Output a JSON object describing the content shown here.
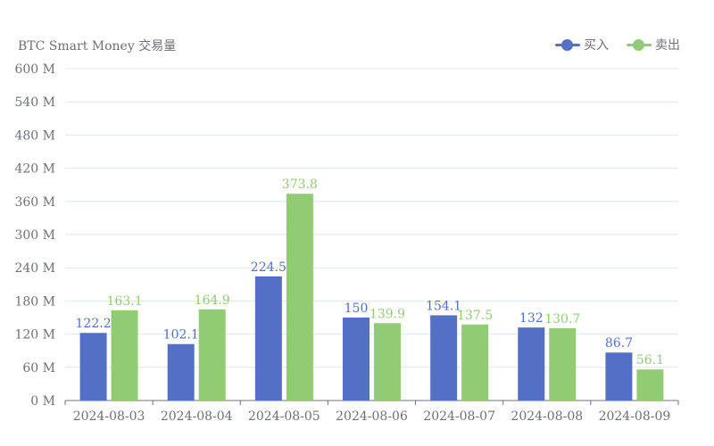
{
  "chart_data": {
    "type": "bar",
    "title": "BTC Smart Money 交易量",
    "categories": [
      "2024-08-03",
      "2024-08-04",
      "2024-08-05",
      "2024-08-06",
      "2024-08-07",
      "2024-08-08",
      "2024-08-09"
    ],
    "series": [
      {
        "name": "买入",
        "color": "#5470c6",
        "values": [
          122.2,
          102.1,
          224.5,
          150,
          154.1,
          132,
          86.7
        ],
        "value_labels": [
          "122.2",
          "102.1",
          "224.5",
          "150",
          "154.1",
          "132",
          "86.7"
        ]
      },
      {
        "name": "卖出",
        "color": "#91cc75",
        "values": [
          163.1,
          164.9,
          373.8,
          139.9,
          137.5,
          130.7,
          56.1
        ],
        "value_labels": [
          "163.1",
          "164.9",
          "373.8",
          "139.9",
          "137.5",
          "130.7",
          "56.1"
        ]
      }
    ],
    "ylim": [
      0,
      600
    ],
    "yticks": [
      0,
      60,
      120,
      180,
      240,
      300,
      360,
      420,
      480,
      540,
      600
    ],
    "ytick_labels": [
      "0 M",
      "60 M",
      "120 M",
      "180 M",
      "240 M",
      "300 M",
      "360 M",
      "420 M",
      "480 M",
      "540 M",
      "600 M"
    ],
    "xlabel": "",
    "ylabel": "",
    "grid": true,
    "legend_position": "top-right",
    "axis_text_color": "#6e7079",
    "grid_color": "#e0e6f1"
  }
}
